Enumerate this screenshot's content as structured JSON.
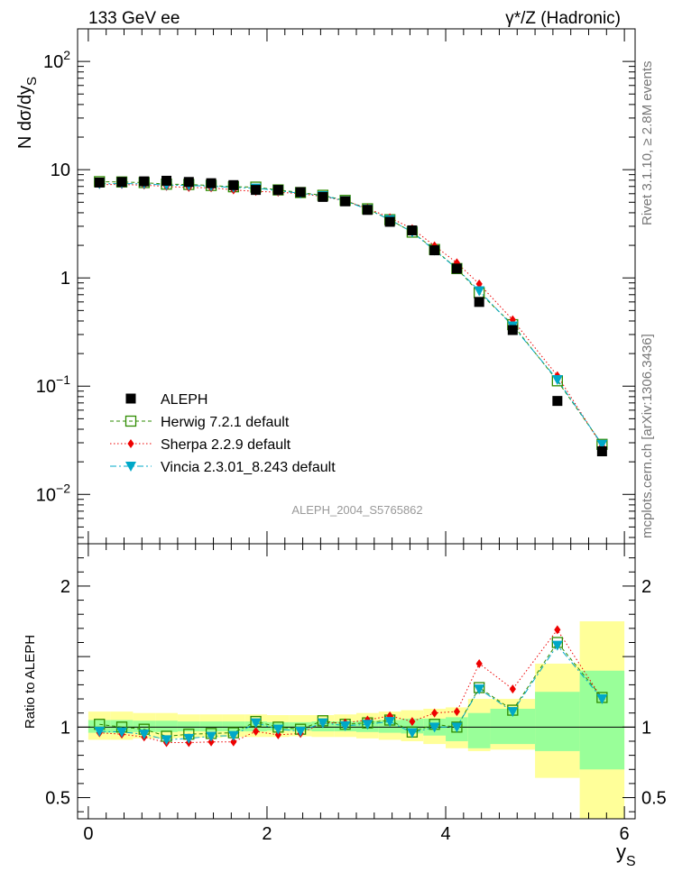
{
  "header": {
    "left": "133 GeV ee",
    "right": "γ*/Z (Hadronic)"
  },
  "side_labels": {
    "rivet": "Rivet 3.1.10, ≥ 2.8M events",
    "mcplots": "mcplots.cern.ch [arXiv:1306.3436]"
  },
  "analysis_id": "ALEPH_2004_S5765862",
  "colors": {
    "data": "#000000",
    "herwig": "#2e8b00",
    "sherpa": "#ee0000",
    "vincia": "#00a8c8",
    "band_outer": "#ffff99",
    "band_inner": "#99ff99"
  },
  "chart_data": [
    {
      "type": "scatter",
      "title": "",
      "ylabel": "N dσ/dy_S",
      "xlabel": "",
      "yscale": "log",
      "ylim": [
        0.0035,
        200
      ],
      "xlim": [
        -0.12,
        6.12
      ],
      "yticks": [
        {
          "value": 0.01,
          "base": "10",
          "exp": "−2"
        },
        {
          "value": 0.1,
          "base": "10",
          "exp": "−1"
        },
        {
          "value": 1,
          "base": "1",
          "exp": ""
        },
        {
          "value": 10,
          "base": "10",
          "exp": ""
        },
        {
          "value": 100,
          "base": "10",
          "exp": "2"
        }
      ],
      "x": [
        0.125,
        0.375,
        0.625,
        0.875,
        1.125,
        1.375,
        1.625,
        1.875,
        2.125,
        2.375,
        2.625,
        2.875,
        3.125,
        3.375,
        3.625,
        3.875,
        4.125,
        4.375,
        4.75,
        5.25,
        5.75
      ],
      "x_bins": [
        [
          0,
          0.25
        ],
        [
          0.25,
          0.5
        ],
        [
          0.5,
          0.75
        ],
        [
          0.75,
          1.0
        ],
        [
          1.0,
          1.25
        ],
        [
          1.25,
          1.5
        ],
        [
          1.5,
          1.75
        ],
        [
          1.75,
          2.0
        ],
        [
          2.0,
          2.25
        ],
        [
          2.25,
          2.5
        ],
        [
          2.5,
          2.75
        ],
        [
          2.75,
          3.0
        ],
        [
          3.0,
          3.25
        ],
        [
          3.25,
          3.5
        ],
        [
          3.5,
          3.75
        ],
        [
          3.75,
          4.0
        ],
        [
          4.0,
          4.25
        ],
        [
          4.25,
          4.5
        ],
        [
          4.5,
          5.0
        ],
        [
          5.0,
          5.5
        ],
        [
          5.5,
          6.0
        ]
      ],
      "series": [
        {
          "name": "ALEPH",
          "key": "data",
          "values": [
            7.6,
            7.7,
            7.8,
            7.9,
            7.7,
            7.5,
            7.2,
            6.5,
            6.5,
            6.2,
            5.6,
            5.1,
            4.25,
            3.3,
            2.75,
            1.8,
            1.22,
            0.6,
            0.33,
            0.073,
            0.025
          ]
        },
        {
          "name": "Herwig 7.2.1 default",
          "key": "herwig",
          "values": [
            7.75,
            7.7,
            7.6,
            7.35,
            7.3,
            7.15,
            6.95,
            6.9,
            6.5,
            6.15,
            5.8,
            5.2,
            4.35,
            3.45,
            2.65,
            1.83,
            1.22,
            0.73,
            0.37,
            0.112,
            0.029
          ]
        },
        {
          "name": "Sherpa 2.2.9 default",
          "key": "sherpa",
          "values": [
            7.3,
            7.3,
            7.2,
            7.0,
            6.85,
            6.8,
            6.5,
            6.3,
            6.2,
            6.0,
            5.65,
            5.15,
            4.4,
            3.6,
            2.85,
            1.98,
            1.38,
            0.88,
            0.41,
            0.125,
            0.028
          ]
        },
        {
          "name": "Vincia 2.3.01_8.243 default",
          "key": "vincia",
          "values": [
            7.4,
            7.45,
            7.4,
            7.2,
            7.15,
            7.05,
            6.85,
            6.75,
            6.4,
            6.05,
            5.75,
            5.15,
            4.3,
            3.45,
            2.65,
            1.8,
            1.22,
            0.76,
            0.36,
            0.115,
            0.029
          ]
        }
      ],
      "legend": {
        "placement": "lower-left"
      }
    },
    {
      "type": "scatter",
      "ylabel": "Ratio to ALEPH",
      "xlabel": "y_S",
      "ylim": [
        0.35,
        2.3
      ],
      "xlim": [
        -0.12,
        6.12
      ],
      "yticks": [
        0.5,
        1,
        2
      ],
      "ytick_labels": [
        "0.5",
        "1",
        "2"
      ],
      "xticks": [
        0,
        2,
        4,
        6
      ],
      "xtick_labels": [
        "0",
        "2",
        "4",
        "6"
      ],
      "band_inner": [
        [
          0.96,
          1.05
        ],
        [
          0.96,
          1.05
        ],
        [
          0.965,
          1.045
        ],
        [
          0.965,
          1.045
        ],
        [
          0.97,
          1.04
        ],
        [
          0.97,
          1.04
        ],
        [
          0.97,
          1.04
        ],
        [
          0.97,
          1.04
        ],
        [
          0.975,
          1.035
        ],
        [
          0.975,
          1.035
        ],
        [
          0.97,
          1.04
        ],
        [
          0.97,
          1.04
        ],
        [
          0.965,
          1.045
        ],
        [
          0.96,
          1.05
        ],
        [
          0.955,
          1.06
        ],
        [
          0.94,
          1.06
        ],
        [
          0.9,
          1.07
        ],
        [
          0.85,
          1.1
        ],
        [
          0.88,
          1.13
        ],
        [
          0.83,
          1.25
        ],
        [
          0.7,
          1.4
        ]
      ],
      "band_outer": [
        [
          0.91,
          1.11
        ],
        [
          0.91,
          1.11
        ],
        [
          0.92,
          1.1
        ],
        [
          0.92,
          1.1
        ],
        [
          0.925,
          1.09
        ],
        [
          0.925,
          1.09
        ],
        [
          0.93,
          1.09
        ],
        [
          0.93,
          1.09
        ],
        [
          0.93,
          1.085
        ],
        [
          0.935,
          1.085
        ],
        [
          0.93,
          1.085
        ],
        [
          0.93,
          1.09
        ],
        [
          0.92,
          1.1
        ],
        [
          0.91,
          1.11
        ],
        [
          0.9,
          1.12
        ],
        [
          0.88,
          1.13
        ],
        [
          0.85,
          1.14
        ],
        [
          0.83,
          1.2
        ],
        [
          0.84,
          1.2
        ],
        [
          0.64,
          1.45
        ],
        [
          0.35,
          1.75
        ]
      ],
      "series": [
        {
          "name": "Herwig 7.2.1 default",
          "key": "herwig",
          "values": [
            1.02,
            1.0,
            0.985,
            0.935,
            0.95,
            0.955,
            0.96,
            1.04,
            1.0,
            0.985,
            1.045,
            1.02,
            1.03,
            1.05,
            0.965,
            1.02,
            1.0,
            1.28,
            1.12,
            1.6,
            1.21
          ]
        },
        {
          "name": "Sherpa 2.2.9 default",
          "key": "sherpa",
          "values": [
            0.96,
            0.95,
            0.93,
            0.89,
            0.89,
            0.895,
            0.895,
            0.97,
            0.945,
            0.955,
            1.03,
            1.03,
            1.05,
            1.08,
            1.04,
            1.1,
            1.11,
            1.45,
            1.27,
            1.69,
            1.2
          ]
        },
        {
          "name": "Vincia 2.3.01_8.243 default",
          "key": "vincia",
          "values": [
            0.97,
            0.965,
            0.95,
            0.91,
            0.92,
            0.935,
            0.94,
            1.03,
            0.985,
            0.97,
            1.03,
            1.01,
            1.02,
            1.04,
            0.96,
            1.0,
            1.0,
            1.27,
            1.11,
            1.58,
            1.2
          ]
        }
      ]
    }
  ]
}
